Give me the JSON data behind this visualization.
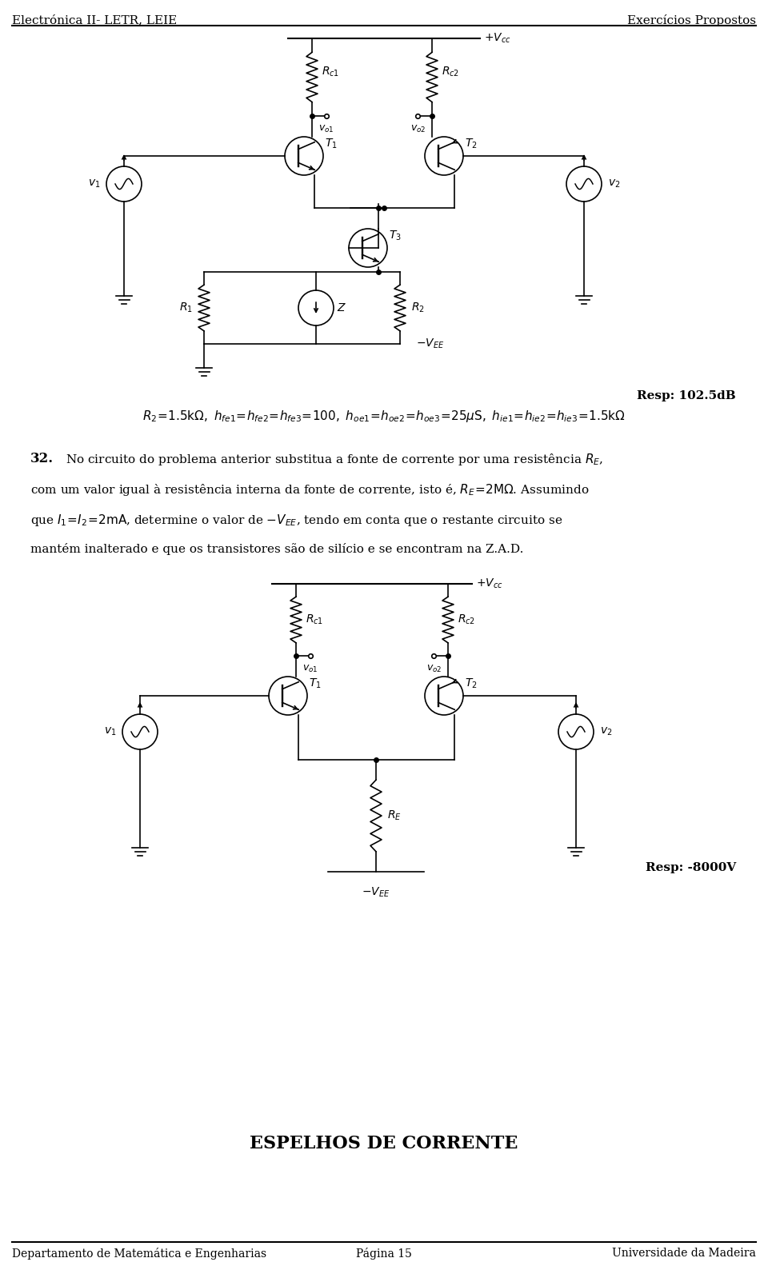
{
  "header_left": "Electrónica II- LETR, LEIE",
  "header_right": "Exercícios Propostos",
  "footer_left": "Departamento de Matemática e Engenharias",
  "footer_center": "Página 15",
  "footer_right": "Universidade da Madeira",
  "resp1": "Resp: 102.5dB",
  "resp2": "Resp: -8000V",
  "section_title": "ESPELHOS DE CORRENTE",
  "problem_number": "32.",
  "background_color": "#ffffff",
  "text_color": "#000000",
  "line_color": "#000000"
}
